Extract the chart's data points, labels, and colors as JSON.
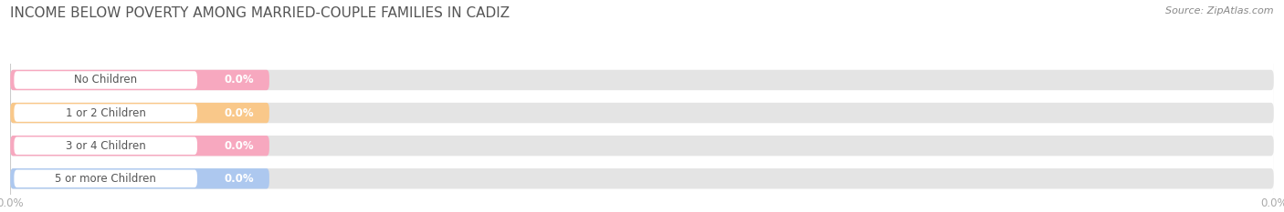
{
  "title": "INCOME BELOW POVERTY AMONG MARRIED-COUPLE FAMILIES IN CADIZ",
  "source": "Source: ZipAtlas.com",
  "categories": [
    "No Children",
    "1 or 2 Children",
    "3 or 4 Children",
    "5 or more Children"
  ],
  "values": [
    0.0,
    0.0,
    0.0,
    0.0
  ],
  "bar_colors": [
    "#f7a8bf",
    "#f9c88a",
    "#f7a8bf",
    "#adc8ef"
  ],
  "label_bg_color": "#ffffff",
  "bg_bar_color": "#e4e4e4",
  "background_color": "#ffffff",
  "title_color": "#555555",
  "source_color": "#888888",
  "label_color": "#555555",
  "value_color_on_bar": "#ffffff",
  "tick_color": "#aaaaaa",
  "gridline_color": "#cccccc",
  "title_fontsize": 11,
  "label_fontsize": 8.5,
  "value_fontsize": 8.5,
  "source_fontsize": 8,
  "tick_fontsize": 8.5,
  "xlim": [
    0,
    100
  ],
  "xtick_positions": [
    0,
    100
  ],
  "xtick_labels": [
    "0.0%",
    "0.0%"
  ]
}
